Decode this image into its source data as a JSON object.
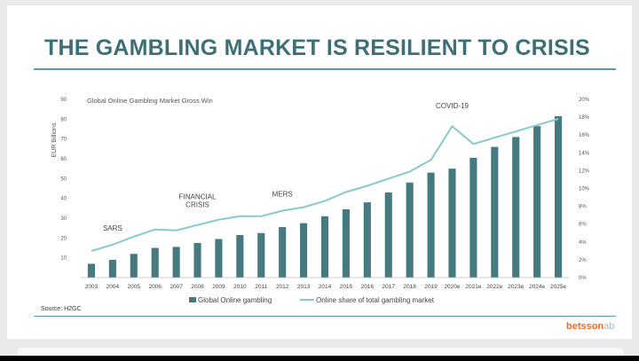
{
  "title": "THE GAMBLING MARKET IS RESILIENT TO CRISIS",
  "source": "Source: H2GC",
  "logo": {
    "main": "betsson",
    "suffix": "ab"
  },
  "colors": {
    "bars": "#467a80",
    "line": "#88c9cd",
    "title": "#3d6f76",
    "covid": "#d64545",
    "logo": "#f36b21"
  },
  "chart_data": {
    "type": "bar",
    "title": "Global Online Gambling Market Gross Win",
    "ylabel": "EUR Billions",
    "ylim": [
      0,
      90
    ],
    "y_ticks": [
      "",
      "10",
      "20",
      "30",
      "40",
      "50",
      "60",
      "70",
      "80",
      "90"
    ],
    "y2lim": [
      0,
      20
    ],
    "y2_ticks": [
      "0%",
      "2%",
      "4%",
      "6%",
      "8%",
      "10%",
      "12%",
      "14%",
      "16%",
      "18%",
      "20%"
    ],
    "categories": [
      "2003",
      "2004",
      "2005",
      "2006",
      "2007",
      "2008",
      "2009",
      "2010",
      "2011",
      "2012",
      "2013",
      "2014",
      "2015",
      "2016",
      "2017",
      "2018",
      "2019",
      "2020e",
      "2021e",
      "2022e",
      "2023e",
      "2024e",
      "2025e"
    ],
    "series": [
      {
        "name": "Global Online gambling",
        "type": "bar",
        "axis": "left",
        "values": [
          7,
          9,
          12,
          15,
          15.5,
          17.5,
          19.5,
          21.5,
          22.5,
          25.5,
          27.5,
          31,
          34.5,
          38,
          43,
          48,
          53,
          55,
          60.5,
          66,
          71,
          76.5,
          81.5
        ]
      },
      {
        "name": "Online share of total gambling market",
        "type": "line",
        "axis": "right",
        "values": [
          3.0,
          3.7,
          4.6,
          5.4,
          5.3,
          5.9,
          6.5,
          6.9,
          6.9,
          7.5,
          7.9,
          8.6,
          9.6,
          10.3,
          11.1,
          11.9,
          13.2,
          17.0,
          15.0,
          15.7,
          16.4,
          17.1,
          17.8
        ]
      }
    ],
    "annotations": [
      {
        "text": "SARS",
        "category": "2004"
      },
      {
        "text": "FINANCIAL CRISIS",
        "lines": [
          "FINANCIAL",
          "CRISIS"
        ],
        "category": "2008"
      },
      {
        "text": "MERS",
        "category": "2012"
      },
      {
        "text": "COVID-19",
        "category": "2020e"
      }
    ],
    "legend": "bottom-center"
  }
}
